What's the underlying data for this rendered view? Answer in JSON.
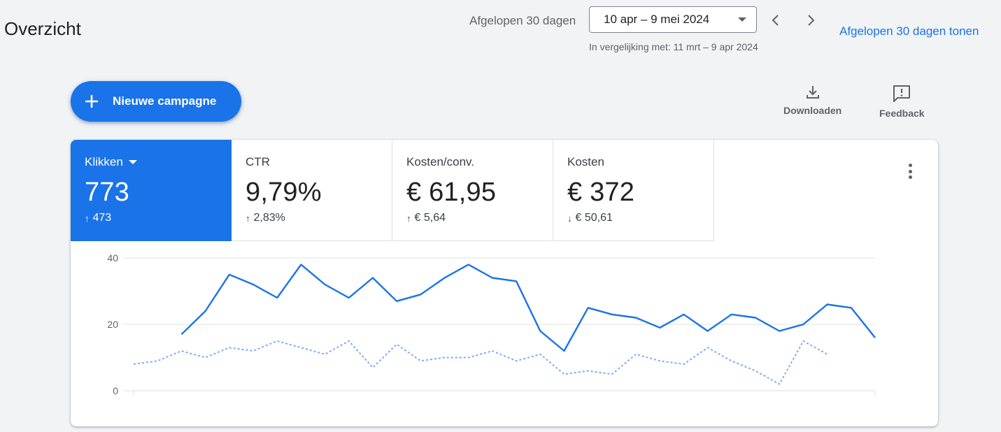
{
  "header": {
    "title": "Overzicht",
    "period_label": "Afgelopen 30 dagen",
    "date_range": "10 apr – 9 mei 2024",
    "comparison": "In vergelijking met: 11 mrt – 9 apr 2024",
    "show_link": "Afgelopen 30 dagen tonen",
    "icons": {
      "prev": "chevron-left-icon",
      "next": "chevron-right-icon",
      "dropdown": "caret-down-icon"
    }
  },
  "toolbar": {
    "new_campaign_label": "Nieuwe campagne",
    "download_label": "Downloaden",
    "feedback_label": "Feedback"
  },
  "metrics": [
    {
      "label": "Klikken",
      "value": "773",
      "change": "473",
      "direction": "up",
      "active": true
    },
    {
      "label": "CTR",
      "value": "9,79%",
      "change": "2,83%",
      "direction": "up",
      "active": false
    },
    {
      "label": "Kosten/conv.",
      "value": "€ 61,95",
      "change": "€ 5,64",
      "direction": "up",
      "active": false
    },
    {
      "label": "Kosten",
      "value": "€ 372",
      "change": "€ 50,61",
      "direction": "down",
      "active": false
    }
  ],
  "arrows": {
    "up": "↑",
    "down": "↓"
  },
  "colors": {
    "accent": "#1a73e8",
    "comparison_line": "#7baaf7",
    "grid": "#e0e0e0"
  },
  "chart_data": {
    "type": "line",
    "ylim": [
      0,
      40
    ],
    "y_ticks": [
      "0",
      "20",
      "40"
    ],
    "x": [
      1,
      2,
      3,
      4,
      5,
      6,
      7,
      8,
      9,
      10,
      11,
      12,
      13,
      14,
      15,
      16,
      17,
      18,
      19,
      20,
      21,
      22,
      23,
      24,
      25,
      26,
      27,
      28,
      29,
      30,
      31,
      32
    ],
    "series": [
      {
        "style": "solid",
        "values": [
          null,
          null,
          17,
          24,
          35,
          32,
          28,
          38,
          32,
          28,
          34,
          27,
          29,
          34,
          38,
          34,
          33,
          18,
          12,
          25,
          23,
          22,
          19,
          23,
          18,
          23,
          22,
          18,
          20,
          26,
          25,
          16
        ]
      },
      {
        "style": "dotted",
        "values": [
          8,
          9,
          12,
          10,
          13,
          12,
          15,
          13,
          11,
          15,
          7,
          14,
          9,
          10,
          10,
          12,
          9,
          11,
          5,
          6,
          5,
          11,
          9,
          8,
          13,
          9,
          6,
          2,
          15,
          11,
          null,
          null
        ]
      }
    ]
  }
}
